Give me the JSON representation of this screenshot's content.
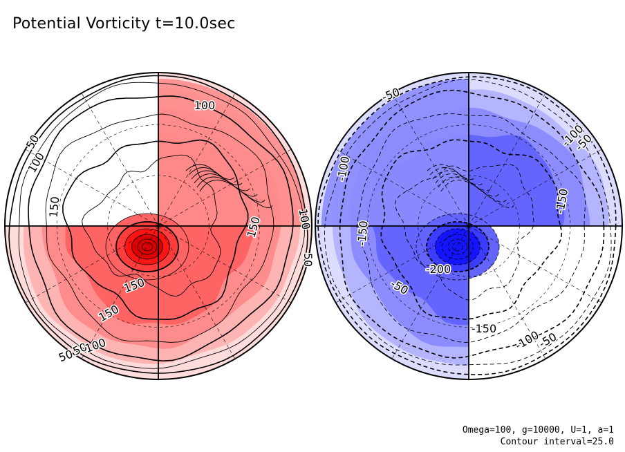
{
  "title": "Potential Vorticity t=10.0sec",
  "params_line": "Omega=100, g=10000, U=1, a=1",
  "contour_line": "Contour interval=25.0",
  "colors": {
    "red_levels": [
      "#ffdcdc",
      "#ffb4b4",
      "#ff8c8c",
      "#ff6464",
      "#ff3c3c",
      "#ff1414",
      "#dc0000"
    ],
    "blue_levels": [
      "#dcdcff",
      "#b4b4ff",
      "#8c8cff",
      "#6464ff",
      "#3c3cff",
      "#1414ff"
    ]
  },
  "chart_data": [
    {
      "type": "polar-contour",
      "hemisphere": "north",
      "colormap": "red",
      "contour_interval": 25.0,
      "contour_labels": [
        "50",
        "100",
        "150",
        "100",
        "50",
        "150",
        "150",
        "100",
        "50",
        "150",
        "50",
        "100"
      ],
      "label_style": "solid",
      "vortex_levels": [
        25,
        50,
        75,
        100,
        125,
        150,
        175,
        200,
        225,
        250
      ]
    },
    {
      "type": "polar-contour",
      "hemisphere": "south",
      "colormap": "blue",
      "contour_interval": 25.0,
      "contour_labels": [
        "-50",
        "-100",
        "-150",
        "-150",
        "-200",
        "-150",
        "-100",
        "-50",
        "-100",
        "-50",
        "-50"
      ],
      "label_style": "dashed",
      "vortex_levels": [
        -25,
        -50,
        -75,
        -100,
        -125,
        -150,
        -175,
        -200,
        -225
      ]
    }
  ]
}
